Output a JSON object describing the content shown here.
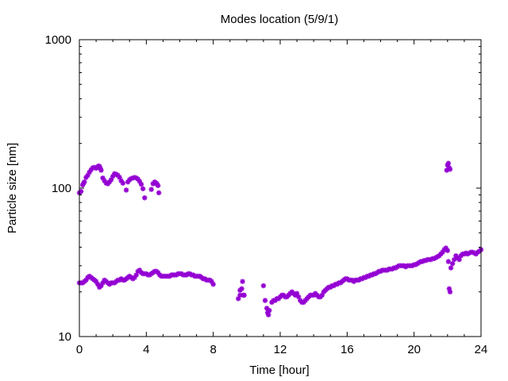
{
  "chart_data": {
    "type": "scatter",
    "title": "Modes location (5/9/1)",
    "xlabel": "Time [hour]",
    "ylabel": "Particle size [nm]",
    "xlim": [
      0,
      24
    ],
    "ylim": [
      10,
      1000
    ],
    "yscale": "log",
    "grid": false,
    "legend": "none",
    "xticks": [
      0,
      4,
      8,
      12,
      16,
      20,
      24
    ],
    "xtick_labels": [
      "0",
      "4",
      "8",
      "12",
      "16",
      "20",
      "24"
    ],
    "yticks": [
      10,
      100,
      1000
    ],
    "ytick_labels": [
      "10",
      "100",
      "1000"
    ],
    "marker_color": "#9400d3",
    "series": [
      {
        "points": [
          [
            0.0,
            23
          ],
          [
            0.1,
            23
          ],
          [
            0.2,
            23
          ],
          [
            0.3,
            23.5
          ],
          [
            0.4,
            24
          ],
          [
            0.5,
            25
          ],
          [
            0.6,
            25.5
          ],
          [
            0.7,
            25
          ],
          [
            0.8,
            24.5
          ],
          [
            0.9,
            24
          ],
          [
            1.0,
            23.5
          ],
          [
            1.1,
            22.5
          ],
          [
            1.2,
            21.5
          ],
          [
            1.3,
            22
          ],
          [
            1.4,
            23
          ],
          [
            1.5,
            24
          ],
          [
            1.6,
            23.5
          ],
          [
            1.7,
            23
          ],
          [
            1.8,
            22.5
          ],
          [
            1.9,
            23
          ],
          [
            2.0,
            23
          ],
          [
            2.1,
            23
          ],
          [
            2.2,
            23.5
          ],
          [
            2.3,
            24
          ],
          [
            2.4,
            24
          ],
          [
            2.5,
            24.5
          ],
          [
            2.6,
            24
          ],
          [
            2.7,
            24
          ],
          [
            2.8,
            24.5
          ],
          [
            2.9,
            25
          ],
          [
            3.0,
            25.5
          ],
          [
            3.1,
            25
          ],
          [
            3.2,
            24.5
          ],
          [
            3.3,
            25
          ],
          [
            3.4,
            26
          ],
          [
            3.5,
            27.5
          ],
          [
            3.6,
            28
          ],
          [
            3.7,
            27
          ],
          [
            3.8,
            26.5
          ],
          [
            3.9,
            26.5
          ],
          [
            4.0,
            26.5
          ],
          [
            4.1,
            26
          ],
          [
            4.2,
            26
          ],
          [
            4.3,
            26.5
          ],
          [
            4.4,
            27
          ],
          [
            4.5,
            27.5
          ],
          [
            4.6,
            27.5
          ],
          [
            4.7,
            27
          ],
          [
            4.8,
            26
          ],
          [
            4.9,
            25.5
          ],
          [
            5.0,
            25.5
          ],
          [
            5.1,
            25.5
          ],
          [
            5.2,
            25.5
          ],
          [
            5.3,
            25.5
          ],
          [
            5.4,
            25.5
          ],
          [
            5.5,
            26
          ],
          [
            5.6,
            26
          ],
          [
            5.7,
            26
          ],
          [
            5.8,
            26
          ],
          [
            5.9,
            26.5
          ],
          [
            6.0,
            26.5
          ],
          [
            6.1,
            26.5
          ],
          [
            6.2,
            26
          ],
          [
            6.3,
            26
          ],
          [
            6.4,
            26
          ],
          [
            6.5,
            26.5
          ],
          [
            6.6,
            26.5
          ],
          [
            6.7,
            26
          ],
          [
            6.8,
            26
          ],
          [
            6.9,
            25.5
          ],
          [
            7.0,
            25.5
          ],
          [
            7.1,
            25.5
          ],
          [
            7.2,
            25.5
          ],
          [
            7.3,
            25
          ],
          [
            7.4,
            24.5
          ],
          [
            7.5,
            24.5
          ],
          [
            7.6,
            24
          ],
          [
            7.7,
            24
          ],
          [
            7.8,
            24
          ],
          [
            7.9,
            23.5
          ],
          [
            8.0,
            22.5
          ],
          [
            9.5,
            18
          ],
          [
            9.6,
            19
          ],
          [
            9.6,
            20.5
          ],
          [
            9.7,
            21
          ],
          [
            9.75,
            23.5
          ],
          [
            9.8,
            19
          ],
          [
            9.85,
            19
          ],
          [
            11.0,
            22
          ],
          [
            11.1,
            17.5
          ],
          [
            11.2,
            15.5
          ],
          [
            11.25,
            14.5
          ],
          [
            11.3,
            14
          ],
          [
            11.35,
            15
          ],
          [
            11.5,
            17
          ],
          [
            11.6,
            17.5
          ],
          [
            11.7,
            17.5
          ],
          [
            11.8,
            18
          ],
          [
            11.9,
            18
          ],
          [
            12.0,
            18.5
          ],
          [
            12.1,
            19
          ],
          [
            12.2,
            19
          ],
          [
            12.3,
            18.5
          ],
          [
            12.4,
            18.5
          ],
          [
            12.5,
            19
          ],
          [
            12.6,
            19.5
          ],
          [
            12.7,
            20
          ],
          [
            12.8,
            19.5
          ],
          [
            12.9,
            19
          ],
          [
            13.0,
            19.5
          ],
          [
            13.1,
            18.5
          ],
          [
            13.2,
            17.5
          ],
          [
            13.3,
            17
          ],
          [
            13.4,
            17
          ],
          [
            13.5,
            17.5
          ],
          [
            13.6,
            18
          ],
          [
            13.7,
            18.5
          ],
          [
            13.8,
            19
          ],
          [
            13.9,
            19
          ],
          [
            14.0,
            19
          ],
          [
            14.1,
            19.5
          ],
          [
            14.2,
            19
          ],
          [
            14.3,
            18.5
          ],
          [
            14.4,
            18.5
          ],
          [
            14.5,
            19
          ],
          [
            14.6,
            20
          ],
          [
            14.7,
            20.5
          ],
          [
            14.8,
            21
          ],
          [
            14.9,
            21.5
          ],
          [
            15.0,
            21.5
          ],
          [
            15.1,
            22
          ],
          [
            15.2,
            22
          ],
          [
            15.3,
            22.5
          ],
          [
            15.4,
            22.5
          ],
          [
            15.5,
            23
          ],
          [
            15.6,
            23
          ],
          [
            15.7,
            23.5
          ],
          [
            15.8,
            24
          ],
          [
            15.9,
            24.5
          ],
          [
            16.0,
            24.5
          ],
          [
            16.1,
            24
          ],
          [
            16.2,
            24
          ],
          [
            16.3,
            24
          ],
          [
            16.4,
            23.5
          ],
          [
            16.5,
            24
          ],
          [
            16.6,
            24
          ],
          [
            16.7,
            24
          ],
          [
            16.8,
            24.5
          ],
          [
            16.9,
            24.5
          ],
          [
            17.0,
            25
          ],
          [
            17.1,
            25
          ],
          [
            17.2,
            25.5
          ],
          [
            17.3,
            25.5
          ],
          [
            17.4,
            26
          ],
          [
            17.5,
            26
          ],
          [
            17.6,
            26.5
          ],
          [
            17.7,
            26.5
          ],
          [
            17.8,
            27
          ],
          [
            17.9,
            27.5
          ],
          [
            18.0,
            27.5
          ],
          [
            18.1,
            28
          ],
          [
            18.2,
            28
          ],
          [
            18.3,
            28
          ],
          [
            18.4,
            28
          ],
          [
            18.5,
            28.5
          ],
          [
            18.6,
            28.5
          ],
          [
            18.7,
            28.5
          ],
          [
            18.8,
            29
          ],
          [
            18.9,
            29
          ],
          [
            19.0,
            29.5
          ],
          [
            19.1,
            30
          ],
          [
            19.2,
            30
          ],
          [
            19.3,
            30
          ],
          [
            19.4,
            30
          ],
          [
            19.5,
            29.5
          ],
          [
            19.6,
            30
          ],
          [
            19.7,
            30
          ],
          [
            19.8,
            30
          ],
          [
            19.9,
            30
          ],
          [
            20.0,
            30.5
          ],
          [
            20.1,
            30.5
          ],
          [
            20.2,
            31
          ],
          [
            20.3,
            31.5
          ],
          [
            20.4,
            32
          ],
          [
            20.5,
            32
          ],
          [
            20.6,
            32.5
          ],
          [
            20.7,
            32.5
          ],
          [
            20.8,
            33
          ],
          [
            20.9,
            33
          ],
          [
            21.0,
            33
          ],
          [
            21.1,
            33.5
          ],
          [
            21.2,
            33.5
          ],
          [
            21.3,
            34
          ],
          [
            21.4,
            34.5
          ],
          [
            21.5,
            35
          ],
          [
            21.6,
            36
          ],
          [
            21.7,
            37
          ],
          [
            21.8,
            38.5
          ],
          [
            21.9,
            39.5
          ],
          [
            22.0,
            38
          ],
          [
            22.05,
            32
          ],
          [
            22.1,
            21
          ],
          [
            22.15,
            20
          ],
          [
            22.2,
            29
          ],
          [
            22.3,
            31
          ],
          [
            22.4,
            33
          ],
          [
            22.5,
            35
          ],
          [
            22.6,
            34
          ],
          [
            22.7,
            33
          ],
          [
            22.8,
            35
          ],
          [
            22.9,
            36
          ],
          [
            23.0,
            36
          ],
          [
            23.1,
            36.5
          ],
          [
            23.2,
            36
          ],
          [
            23.3,
            36.5
          ],
          [
            23.4,
            37
          ],
          [
            23.5,
            37
          ],
          [
            23.6,
            36.5
          ],
          [
            23.7,
            36
          ],
          [
            23.8,
            37
          ],
          [
            23.9,
            37.5
          ],
          [
            24.0,
            38.5
          ],
          [
            0.0,
            93
          ],
          [
            0.1,
            95
          ],
          [
            0.2,
            105
          ],
          [
            0.25,
            108
          ],
          [
            0.3,
            110
          ],
          [
            0.4,
            118
          ],
          [
            0.5,
            122
          ],
          [
            0.6,
            128
          ],
          [
            0.7,
            133
          ],
          [
            0.8,
            137
          ],
          [
            0.9,
            138
          ],
          [
            1.0,
            136
          ],
          [
            1.1,
            139
          ],
          [
            1.15,
            141
          ],
          [
            1.2,
            140
          ],
          [
            1.25,
            136
          ],
          [
            1.3,
            132
          ],
          [
            1.4,
            117
          ],
          [
            1.5,
            112
          ],
          [
            1.6,
            108
          ],
          [
            1.7,
            107
          ],
          [
            1.8,
            110
          ],
          [
            1.9,
            114
          ],
          [
            2.0,
            120
          ],
          [
            2.1,
            125
          ],
          [
            2.2,
            124
          ],
          [
            2.3,
            122
          ],
          [
            2.4,
            118
          ],
          [
            2.5,
            112
          ],
          [
            2.6,
            108
          ],
          [
            2.8,
            97
          ],
          [
            2.9,
            110
          ],
          [
            3.0,
            114
          ],
          [
            3.1,
            116
          ],
          [
            3.2,
            117
          ],
          [
            3.3,
            118
          ],
          [
            3.4,
            117
          ],
          [
            3.5,
            115
          ],
          [
            3.6,
            111
          ],
          [
            3.7,
            106
          ],
          [
            3.8,
            99
          ],
          [
            3.9,
            86
          ],
          [
            4.3,
            98
          ],
          [
            4.4,
            107
          ],
          [
            4.5,
            110
          ],
          [
            4.6,
            108
          ],
          [
            4.65,
            106
          ],
          [
            4.7,
            104
          ],
          [
            4.75,
            93
          ],
          [
            21.95,
            132
          ],
          [
            22.0,
            143
          ],
          [
            22.05,
            147
          ],
          [
            22.1,
            137
          ],
          [
            22.15,
            134
          ]
        ]
      }
    ]
  }
}
